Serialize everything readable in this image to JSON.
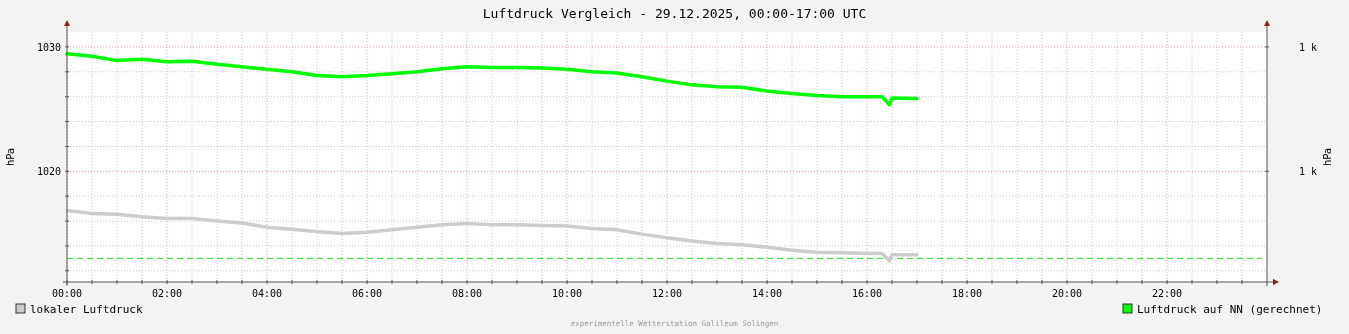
{
  "chart_data": {
    "type": "line",
    "title": "Luftdruck Vergleich - 29.12.2025, 00:00-17:00 UTC",
    "ylabel": "hPa",
    "y2label": "hPa",
    "xlim": [
      0,
      24
    ],
    "xticks": [
      {
        "value": 0,
        "label": "00:00"
      },
      {
        "value": 0.5,
        "label": null
      },
      {
        "value": 1,
        "label": null
      },
      {
        "value": 1.5,
        "label": null
      },
      {
        "value": 2,
        "label": "02:00"
      },
      {
        "value": 2.5,
        "label": null
      },
      {
        "value": 3,
        "label": null
      },
      {
        "value": 3.5,
        "label": null
      },
      {
        "value": 4,
        "label": "04:00"
      },
      {
        "value": 4.5,
        "label": null
      },
      {
        "value": 5,
        "label": null
      },
      {
        "value": 5.5,
        "label": null
      },
      {
        "value": 6,
        "label": "06:00"
      },
      {
        "value": 6.5,
        "label": null
      },
      {
        "value": 7,
        "label": null
      },
      {
        "value": 7.5,
        "label": null
      },
      {
        "value": 8,
        "label": "08:00"
      },
      {
        "value": 8.5,
        "label": null
      },
      {
        "value": 9,
        "label": null
      },
      {
        "value": 9.5,
        "label": null
      },
      {
        "value": 10,
        "label": "10:00"
      },
      {
        "value": 10.5,
        "label": null
      },
      {
        "value": 11,
        "label": null
      },
      {
        "value": 11.5,
        "label": null
      },
      {
        "value": 12,
        "label": "12:00"
      },
      {
        "value": 12.5,
        "label": null
      },
      {
        "value": 13,
        "label": null
      },
      {
        "value": 13.5,
        "label": null
      },
      {
        "value": 14,
        "label": "14:00"
      },
      {
        "value": 14.5,
        "label": null
      },
      {
        "value": 15,
        "label": null
      },
      {
        "value": 15.5,
        "label": null
      },
      {
        "value": 16,
        "label": "16:00"
      },
      {
        "value": 16.5,
        "label": null
      },
      {
        "value": 17,
        "label": null
      },
      {
        "value": 17.5,
        "label": null
      },
      {
        "value": 18,
        "label": "18:00"
      },
      {
        "value": 18.5,
        "label": null
      },
      {
        "value": 19,
        "label": null
      },
      {
        "value": 19.5,
        "label": null
      },
      {
        "value": 20,
        "label": "20:00"
      },
      {
        "value": 20.5,
        "label": null
      },
      {
        "value": 21,
        "label": null
      },
      {
        "value": 21.5,
        "label": null
      },
      {
        "value": 22,
        "label": "22:00"
      },
      {
        "value": 22.5,
        "label": null
      },
      {
        "value": 23,
        "label": null
      },
      {
        "value": 23.5,
        "label": null
      }
    ],
    "ylim": [
      1011.1,
      1031.2
    ],
    "yticks": [
      {
        "value": 1012,
        "label": null
      },
      {
        "value": 1014,
        "label": null
      },
      {
        "value": 1016,
        "label": null
      },
      {
        "value": 1018,
        "label": null
      },
      1020,
      {
        "value": 1022,
        "label": null
      },
      {
        "value": 1024,
        "label": null
      },
      {
        "value": 1026,
        "label": null
      },
      {
        "value": 1028,
        "label": null
      },
      1030
    ],
    "y2lim": [
      1011.1,
      1031.2
    ],
    "y2ticks": [
      {
        "value": 1020,
        "label": "1 k"
      },
      {
        "value": 1030,
        "label": "1 k"
      }
    ],
    "x": [
      0,
      0.5,
      1,
      1.5,
      2,
      2.5,
      3,
      3.5,
      4,
      4.5,
      5,
      5.5,
      6,
      6.5,
      7,
      7.5,
      8,
      8.5,
      9,
      9.5,
      10,
      10.5,
      11,
      11.5,
      12,
      12.5,
      13,
      13.5,
      14,
      14.5,
      15,
      15.5,
      16,
      16.3,
      16.45,
      16.5,
      17
    ],
    "series": [
      {
        "name": "lokaler Luftdruck",
        "color": "#cccccc",
        "values": [
          1016.84,
          1016.6,
          1016.55,
          1016.35,
          1016.2,
          1016.2,
          1016.0,
          1015.85,
          1015.5,
          1015.35,
          1015.15,
          1015.0,
          1015.1,
          1015.3,
          1015.5,
          1015.7,
          1015.8,
          1015.7,
          1015.7,
          1015.65,
          1015.6,
          1015.4,
          1015.3,
          1014.95,
          1014.65,
          1014.4,
          1014.2,
          1014.1,
          1013.9,
          1013.65,
          1013.5,
          1013.45,
          1013.4,
          1013.4,
          1012.8,
          1013.3,
          1013.3
        ]
      },
      {
        "name": "Luftdruck auf NN (gerechnet)",
        "color": "#00ff00",
        "values": [
          1029.45,
          1029.25,
          1028.9,
          1029.0,
          1028.8,
          1028.85,
          1028.6,
          1028.4,
          1028.2,
          1028.0,
          1027.7,
          1027.6,
          1027.7,
          1027.85,
          1028.0,
          1028.25,
          1028.4,
          1028.35,
          1028.35,
          1028.3,
          1028.2,
          1028.0,
          1027.9,
          1027.6,
          1027.25,
          1026.95,
          1026.8,
          1026.75,
          1026.45,
          1026.25,
          1026.1,
          1026.0,
          1026.0,
          1026.0,
          1025.35,
          1025.9,
          1025.85
        ]
      }
    ],
    "ref_lines": [
      {
        "axis": "y",
        "value": 1013,
        "color": "#22dd22",
        "line_style": "dashed"
      }
    ],
    "grid": true,
    "legend": "bottom",
    "annotations": [
      "experimentelle Wetterstation Galileum Solingen"
    ]
  }
}
